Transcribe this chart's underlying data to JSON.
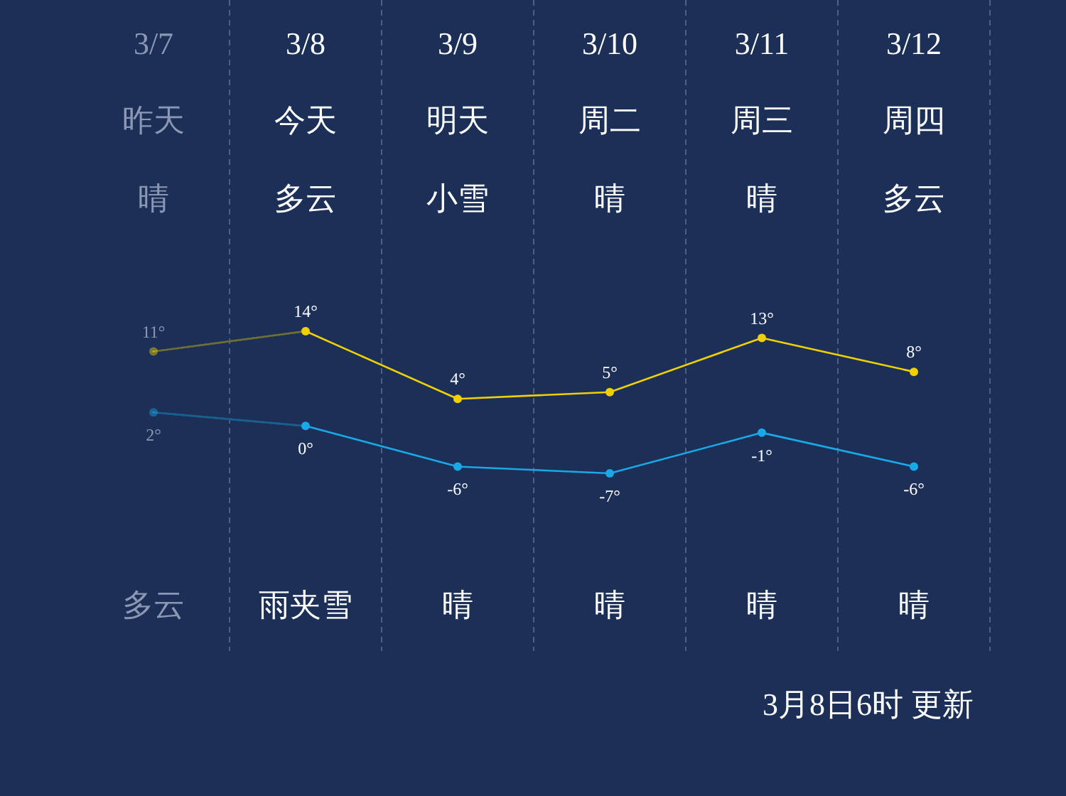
{
  "chart_data": {
    "type": "line",
    "categories": [
      "3/7",
      "3/8",
      "3/9",
      "3/10",
      "3/11",
      "3/12"
    ],
    "marker": "circle",
    "series": [
      {
        "color": "#f0d000",
        "values": [
          11,
          14,
          4,
          5,
          13,
          8
        ],
        "value_labels": [
          "11°",
          "14°",
          "4°",
          "5°",
          "13°",
          "8°"
        ]
      },
      {
        "color": "#1aa8e6",
        "values": [
          2,
          0,
          -6,
          -7,
          -1,
          -6
        ],
        "value_labels": [
          "2°",
          "0°",
          "-6°",
          "-7°",
          "-1°",
          "-6°"
        ]
      }
    ],
    "annotations": [
      "昨天",
      "今天",
      "明天",
      "周二",
      "周三",
      "周四",
      "晴",
      "多云",
      "小雪",
      "晴",
      "晴",
      "多云",
      "多云",
      "雨夹雪",
      "晴",
      "晴",
      "晴",
      "晴",
      "3月8日6时 更新"
    ]
  }
}
